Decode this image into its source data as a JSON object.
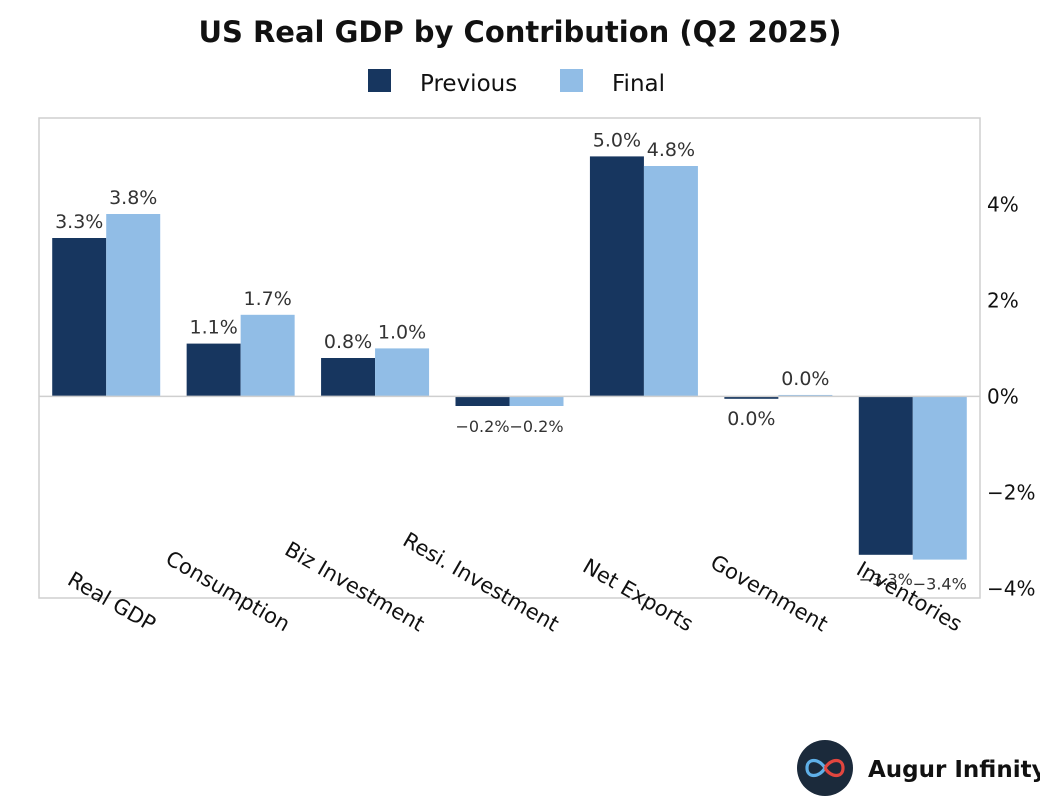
{
  "chart_data": {
    "type": "bar",
    "title": "US Real GDP by Contribution (Q2 2025)",
    "categories": [
      "Real GDP",
      "Consumption",
      "Biz Investment",
      "Resi. Investment",
      "Net Exports",
      "Government",
      "Inventories"
    ],
    "series": [
      {
        "name": "Previous",
        "color": "#17365f",
        "values": [
          3.3,
          1.1,
          0.8,
          -0.2,
          5.0,
          -0.05,
          -3.3
        ],
        "labels": [
          "3.3%",
          "1.1%",
          "0.8%",
          "−0.2%",
          "5.0%",
          "0.0%",
          "−3.3%"
        ]
      },
      {
        "name": "Final",
        "color": "#91bde6",
        "values": [
          3.8,
          1.7,
          1.0,
          -0.2,
          4.8,
          0.03,
          -3.4
        ],
        "labels": [
          "3.8%",
          "1.7%",
          "1.0%",
          "−0.2%",
          "4.8%",
          "0.0%",
          "−3.4%"
        ]
      }
    ],
    "ylim": [
      -4.2,
      5.8
    ],
    "yticks": [
      4,
      2,
      0,
      -2,
      -4
    ],
    "ytick_labels": [
      "4%",
      "2%",
      "0%",
      "−2%",
      "−4%"
    ],
    "yaxis_side": "right",
    "legend": "top-center",
    "grid": false
  },
  "brand": {
    "name": "Augur Infinity",
    "logo_icon": "infinity-icon"
  }
}
